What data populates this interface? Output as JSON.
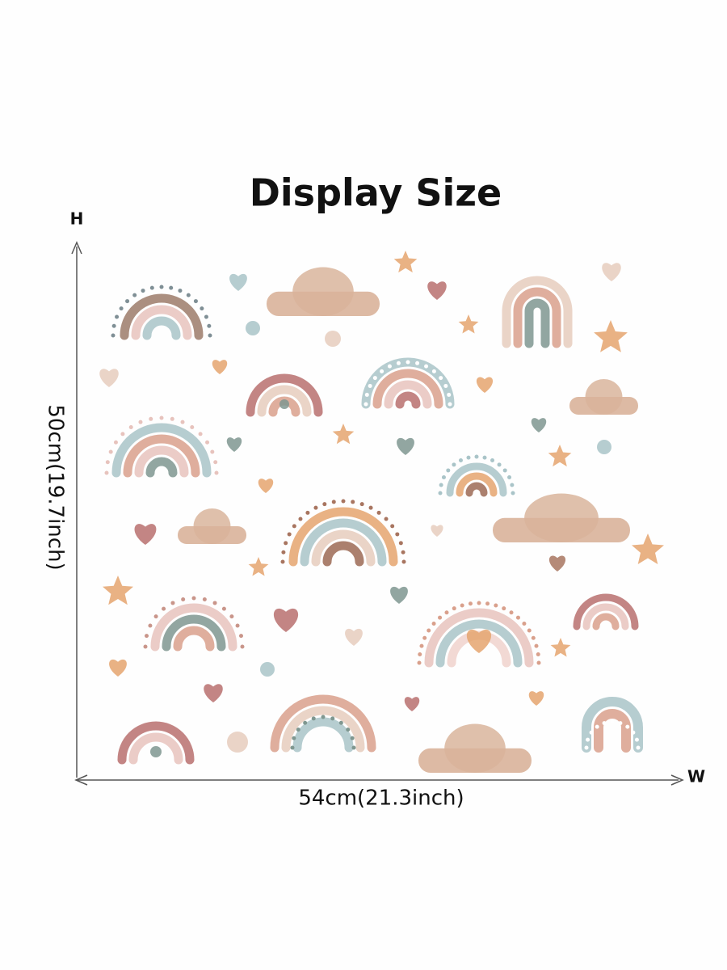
{
  "header": {
    "title": "Display Size"
  },
  "dimensions": {
    "height_axis": "H",
    "width_axis": "W",
    "height": "50cm(19.7inch)",
    "width": "54cm(21.3inch)"
  }
}
